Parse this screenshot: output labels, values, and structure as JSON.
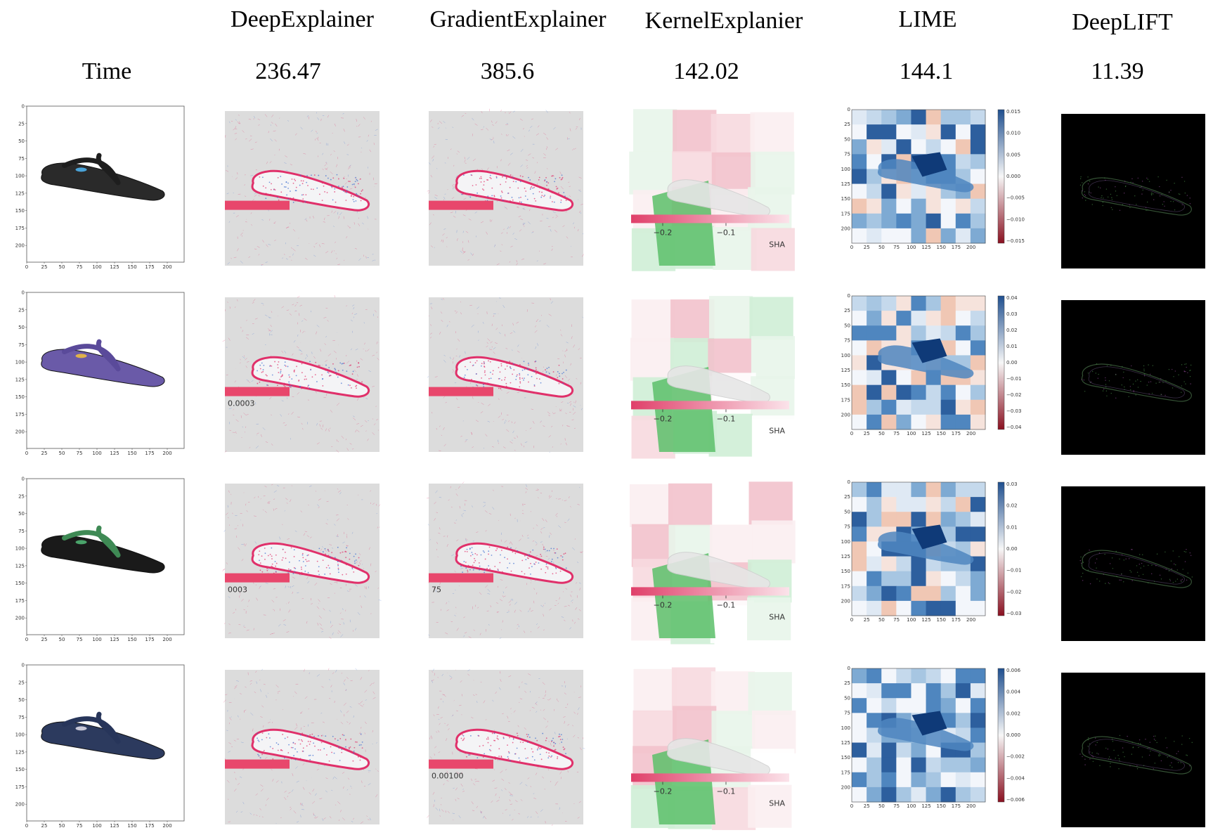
{
  "headers": {
    "row_label": "Time",
    "methods": [
      {
        "name": "DeepExplainer",
        "time": "236.47"
      },
      {
        "name": "GradientExplainer",
        "time": "385.6"
      },
      {
        "name": "KernelExplanier",
        "time": "142.02"
      },
      {
        "name": "LIME",
        "time": "144.1"
      },
      {
        "name": "DeepLIFT",
        "time": "11.39"
      }
    ]
  },
  "input_axis_ticks": [
    "0",
    "25",
    "50",
    "75",
    "100",
    "125",
    "150",
    "175",
    "200"
  ],
  "rows": [
    {
      "shoe_color": "#2a2a2a",
      "strap_color": "#1e1e1e",
      "accent": "#4aa3d8",
      "deep_label": "",
      "grad_label": "",
      "kernel_ticks": [
        "−0.2",
        "−0.1"
      ],
      "kernel_suffix": "SHA",
      "lime_colorbar": [
        "0.015",
        "0.010",
        "0.005",
        "0.000",
        "−0.005",
        "−0.010",
        "−0.015"
      ]
    },
    {
      "shoe_color": "#6a5aa8",
      "strap_color": "#5a4a9a",
      "accent": "#e0b24a",
      "deep_label": "0.0003",
      "grad_label": "",
      "kernel_ticks": [
        "−0.2",
        "−0.1"
      ],
      "kernel_suffix": "SHA",
      "lime_colorbar": [
        "0.04",
        "0.03",
        "0.02",
        "0.01",
        "0.00",
        "−0.01",
        "−0.02",
        "−0.03",
        "−0.04"
      ]
    },
    {
      "shoe_color": "#1a1a1a",
      "strap_color": "#3f8a55",
      "accent": "#4aa36a",
      "deep_label": "0003",
      "grad_label": "75",
      "kernel_ticks": [
        "−0.2",
        "−0.1"
      ],
      "kernel_suffix": "SHA",
      "lime_colorbar": [
        "0.03",
        "0.02",
        "0.01",
        "0.00",
        "−0.01",
        "−0.02",
        "−0.03"
      ]
    },
    {
      "shoe_color": "#2c3a5e",
      "strap_color": "#27355a",
      "accent": "#c8c8d8",
      "deep_label": "",
      "grad_label": "0.00100",
      "kernel_ticks": [
        "−0.2",
        "−0.1"
      ],
      "kernel_suffix": "SHA",
      "lime_colorbar": [
        "0.006",
        "0.004",
        "0.002",
        "0.000",
        "−0.002",
        "−0.004",
        "−0.006"
      ]
    }
  ]
}
